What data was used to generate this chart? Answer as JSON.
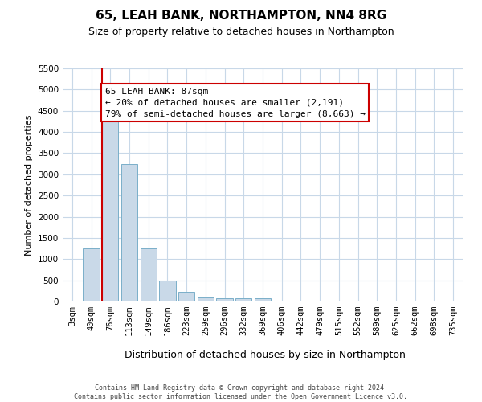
{
  "title": "65, LEAH BANK, NORTHAMPTON, NN4 8RG",
  "subtitle": "Size of property relative to detached houses in Northampton",
  "xlabel": "Distribution of detached houses by size in Northampton",
  "ylabel": "Number of detached properties",
  "categories": [
    "3sqm",
    "40sqm",
    "76sqm",
    "113sqm",
    "149sqm",
    "186sqm",
    "223sqm",
    "259sqm",
    "296sqm",
    "332sqm",
    "369sqm",
    "406sqm",
    "442sqm",
    "479sqm",
    "515sqm",
    "552sqm",
    "589sqm",
    "625sqm",
    "662sqm",
    "698sqm",
    "735sqm"
  ],
  "values": [
    0,
    1250,
    4300,
    3250,
    1250,
    500,
    225,
    100,
    75,
    75,
    75,
    0,
    0,
    0,
    0,
    0,
    0,
    0,
    0,
    0,
    0
  ],
  "bar_color": "#c9d9e8",
  "bar_edge_color": "#7aafc9",
  "vline_color": "#cc0000",
  "vline_x": 1.575,
  "ylim_max": 5500,
  "yticks": [
    0,
    500,
    1000,
    1500,
    2000,
    2500,
    3000,
    3500,
    4000,
    4500,
    5000,
    5500
  ],
  "annotation_line1": "65 LEAH BANK: 87sqm",
  "annotation_line2": "← 20% of detached houses are smaller (2,191)",
  "annotation_line3": "79% of semi-detached houses are larger (8,663) →",
  "annotation_box_edgecolor": "#cc0000",
  "footer_line1": "Contains HM Land Registry data © Crown copyright and database right 2024.",
  "footer_line2": "Contains public sector information licensed under the Open Government Licence v3.0.",
  "bg_color": "#ffffff",
  "grid_color": "#c8d8e8",
  "title_fontsize": 11,
  "subtitle_fontsize": 9,
  "ylabel_fontsize": 8,
  "xlabel_fontsize": 9,
  "tick_fontsize": 7.5,
  "ann_fontsize": 8
}
